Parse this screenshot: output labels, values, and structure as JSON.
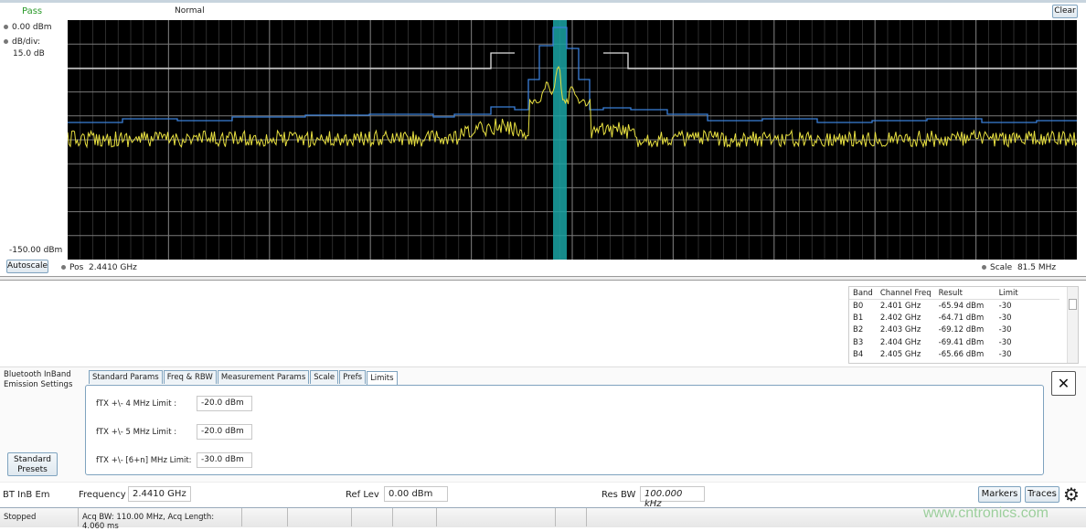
{
  "header": {
    "status": "Pass",
    "mode": "Normal",
    "clear_label": "Clear"
  },
  "left_panel": {
    "ref_level": "0.00 dBm",
    "db_div_label": "dB/div:",
    "db_div_value": "15.0 dB",
    "bottom_level": "-150.00 dBm",
    "autoscale_label": "Autoscale"
  },
  "footer_plot": {
    "pos_label": "Pos",
    "pos_value": "2.4410 GHz",
    "scale_label": "Scale",
    "scale_value": "81.5 MHz"
  },
  "plot": {
    "colors": {
      "trace": "#e8e040",
      "max_trace": "#3a7fd8",
      "limit": "#e0e0e0",
      "channel_band": "#1aa3a3",
      "grid": "#7a7a7a"
    }
  },
  "results_table": {
    "headers": [
      "Band",
      "Channel Freq",
      "Result",
      "Limit"
    ],
    "rows": [
      [
        "B0",
        "2.401 GHz",
        "-65.94 dBm",
        "-30"
      ],
      [
        "B1",
        "2.402 GHz",
        "-64.71 dBm",
        "-30"
      ],
      [
        "B2",
        "2.403 GHz",
        "-69.12 dBm",
        "-30"
      ],
      [
        "B3",
        "2.404 GHz",
        "-69.41 dBm",
        "-30"
      ],
      [
        "B4",
        "2.405 GHz",
        "-65.66 dBm",
        "-30"
      ]
    ]
  },
  "settings": {
    "title": "Bluetooth InBand Emission Settings",
    "tabs": [
      "Standard Params",
      "Freq & RBW",
      "Measurement Params",
      "Scale",
      "Prefs",
      "Limits"
    ],
    "active_tab": "Limits",
    "limits": [
      {
        "label": "fTX +\\- 4 MHz Limit :",
        "value": "-20.0 dBm"
      },
      {
        "label": "fTX +\\- 5 MHz Limit :",
        "value": "-20.0 dBm"
      },
      {
        "label": "fTX +\\- [6+n] MHz Limit:",
        "value": "-30.0 dBm"
      }
    ],
    "presets_label": "Standard Presets",
    "close_label": "✕"
  },
  "control_bar": {
    "measurement": "BT InB Em",
    "frequency_label": "Frequency",
    "frequency_value": "2.4410 GHz",
    "ref_lev_label": "Ref Lev",
    "ref_lev_value": "0.00 dBm",
    "res_bw_label": "Res BW",
    "res_bw_value": "100.000 kHz",
    "markers_label": "Markers",
    "traces_label": "Traces"
  },
  "status_bar": {
    "state": "Stopped",
    "acq_info": "Acq BW: 110.00 MHz, Acq Length: 4.060 ms",
    "watermark": "www.cntronics.com"
  }
}
